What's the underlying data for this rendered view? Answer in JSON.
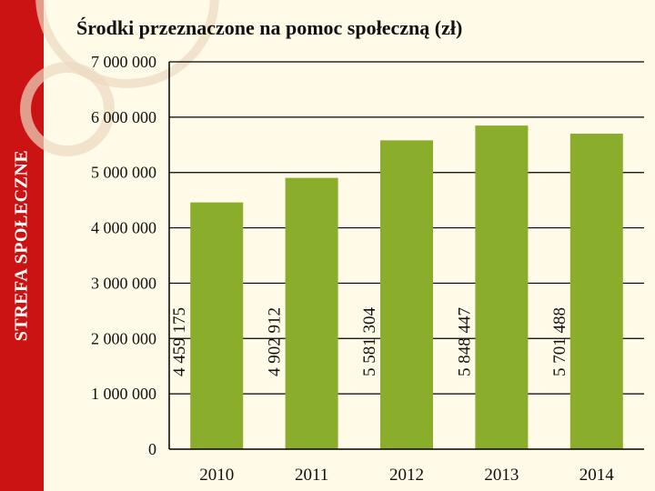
{
  "side_label": "STREFA SPOŁECZNE",
  "colors": {
    "side_band": "#cc1313",
    "bar": "#8aad2c",
    "gridline": "#000000",
    "background": "#fffbe8"
  },
  "chart_data": {
    "type": "bar",
    "title": "Środki przeznaczone na pomoc społeczną (zł)",
    "xlabel": "",
    "ylabel": "",
    "categories": [
      "2010",
      "2011",
      "2012",
      "2013",
      "2014"
    ],
    "values": [
      4459175,
      4902912,
      5581304,
      5848447,
      5701488
    ],
    "data_labels": [
      "4 459 175",
      "4 902 912",
      "5 581 304",
      "5 848 447",
      "5 701 488"
    ],
    "y_ticks": [
      0,
      1000000,
      2000000,
      3000000,
      4000000,
      5000000,
      6000000,
      7000000
    ],
    "y_tick_labels": [
      "0",
      "1 000 000",
      "2 000 000",
      "3 000 000",
      "4 000 000",
      "5 000 000",
      "6 000 000",
      "7 000 000"
    ],
    "ylim": [
      0,
      7000000
    ],
    "grid": true,
    "data_label_orientation": "vertical"
  }
}
